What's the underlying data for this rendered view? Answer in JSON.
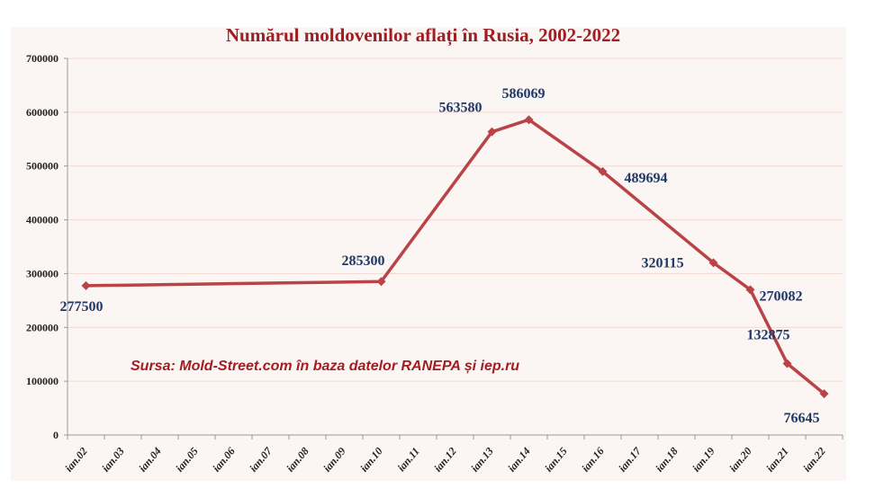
{
  "chart_data": {
    "type": "line",
    "title": "Numărul moldovenilor aflați în Rusia, 2002-2022",
    "annotation": "Sursa: Mold-Street.com în baza datelor RANEPA și iep.ru",
    "categories": [
      "ian.02",
      "ian.03",
      "ian.04",
      "ian.05",
      "ian.06",
      "ian.07",
      "ian.08",
      "ian.09",
      "ian.10",
      "ian.11",
      "ian.12",
      "ian.13",
      "ian.14",
      "ian.15",
      "ian.16",
      "ian.17",
      "ian.18",
      "ian.19",
      "ian.20",
      "ian.21",
      "ian.22"
    ],
    "series": [
      {
        "points": [
          {
            "x": "ian.02",
            "y": 277500
          },
          {
            "x": "ian.10",
            "y": 285300
          },
          {
            "x": "ian.13",
            "y": 563580
          },
          {
            "x": "ian.14",
            "y": 586069
          },
          {
            "x": "ian.16",
            "y": 489694
          },
          {
            "x": "ian.19",
            "y": 320115
          },
          {
            "x": "ian.20",
            "y": 270082
          },
          {
            "x": "ian.21",
            "y": 132875
          },
          {
            "x": "ian.22",
            "y": 76645
          }
        ]
      }
    ],
    "yticks": [
      "0",
      "100000",
      "200000",
      "300000",
      "400000",
      "500000",
      "600000",
      "700000"
    ],
    "ylim": [
      0,
      700000
    ],
    "grid": true,
    "colors": {
      "line": "#b94346",
      "title": "#a11d21",
      "labels": "#1f3864",
      "annotation": "#a11d21",
      "grid": "#f2d9d2"
    }
  }
}
